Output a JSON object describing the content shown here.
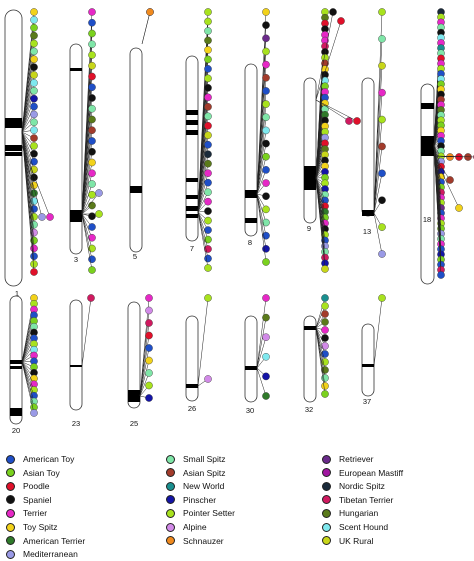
{
  "colors": {
    "American Toy": "#1f4fc7",
    "Asian Toy": "#7ad11e",
    "Poodle": "#e0102a",
    "Spaniel": "#111111",
    "Terrier": "#e628c6",
    "Toy Spitz": "#f2d21a",
    "American Terrier": "#2f7a2a",
    "Mediterranean": "#9a9ae6",
    "Small Spitz": "#7fe6a8",
    "Asian Spitz": "#a23b2b",
    "New World": "#1a8f8f",
    "Pinscher": "#1414a6",
    "Pointer Setter": "#a8e21e",
    "Alpine": "#d28ae8",
    "Schnauzer": "#f08a1e",
    "Retriever": "#6a2a8a",
    "European Mastiff": "#a016a0",
    "Nordic Spitz": "#1a2a3a",
    "Tibetan Terrier": "#d01a60",
    "Hungarian": "#5a7a1a",
    "Scent Hound": "#7fe8ee",
    "UK Rural": "#c8d61a"
  },
  "legend": [
    {
      "name": "American Toy"
    },
    {
      "name": "Asian Toy"
    },
    {
      "name": "Poodle"
    },
    {
      "name": "Spaniel"
    },
    {
      "name": "Terrier"
    },
    {
      "name": "Toy Spitz"
    },
    {
      "name": "American Terrier"
    },
    {
      "name": "Mediterranean"
    },
    {
      "name": "Small Spitz"
    },
    {
      "name": "Asian Spitz"
    },
    {
      "name": "New World"
    },
    {
      "name": "Pinscher"
    },
    {
      "name": "Pointer Setter"
    },
    {
      "name": "Alpine"
    },
    {
      "name": "Schnauzer"
    },
    {
      "name": "Retriever"
    },
    {
      "name": "European Mastiff"
    },
    {
      "name": "Nordic Spitz"
    },
    {
      "name": "Tibetan Terrier"
    },
    {
      "name": "Hungarian"
    },
    {
      "name": "Scent Hound"
    },
    {
      "name": "UK Rural"
    }
  ],
  "chromosomes": [
    {
      "label": "1",
      "loci": [
        [
          "Toy Spitz",
          "Scent Hound",
          "Asian Toy",
          "Hungarian",
          "Pointer Setter",
          "Small Spitz",
          "Toy Spitz",
          "Spaniel",
          "UK Rural",
          "Scent Hound",
          "Small Spitz",
          "Pinscher",
          "American Toy",
          "Mediterranean",
          "Small Spitz",
          "Scent Hound",
          "Asian Spitz",
          "Pointer Setter",
          "Spaniel",
          "American Toy",
          "UK Rural",
          "Spaniel",
          "Toy Spitz",
          "American Terrier",
          "Scent Hound",
          "American Toy",
          "Pointer Setter",
          "Small Spitz",
          "Alpine",
          "Asian Toy",
          "Terrier",
          "American Toy",
          "Pointer Setter",
          "Poodle"
        ],
        [
          "Mediterranean",
          "Terrier"
        ]
      ]
    },
    {
      "label": "3",
      "loci": [
        [
          "Terrier",
          "American Toy",
          "Asian Toy",
          "Small Spitz",
          "Pointer Setter",
          "UK Rural",
          "Poodle",
          "American Toy",
          "Spaniel",
          "Small Spitz",
          "Hungarian",
          "Asian Spitz",
          "American Toy",
          "Spaniel",
          "Toy Spitz",
          "Terrier",
          "Small Spitz",
          "Pointer Setter",
          "Hungarian",
          "Spaniel",
          "American Toy",
          "Terrier",
          "Pointer Setter",
          "American Toy",
          "Asian Toy"
        ],
        [
          "Mediterranean",
          "Pointer Setter"
        ]
      ]
    },
    {
      "label": "5",
      "loci": [
        [
          "Terrier",
          "Schnauzer"
        ]
      ]
    },
    {
      "label": "7",
      "loci": [
        [
          "Pointer Setter",
          "Pointer Setter",
          "Small Spitz",
          "Hungarian",
          "Toy Spitz",
          "Asian Toy",
          "American Toy",
          "Pointer Setter",
          "Spaniel",
          "Terrier",
          "Asian Spitz",
          "Small Spitz",
          "Poodle",
          "UK Rural",
          "American Toy",
          "Nordic Spitz",
          "Hungarian",
          "Terrier",
          "American Toy",
          "Small Spitz",
          "Terrier",
          "Spaniel",
          "Pointer Setter",
          "American Toy",
          "Asian Toy",
          "Tibetan Terrier",
          "American Toy",
          "Pointer Setter"
        ]
      ]
    },
    {
      "label": "8",
      "loci": [
        [
          "Toy Spitz",
          "Spaniel",
          "Retriever",
          "Pointer Setter",
          "Terrier",
          "Asian Spitz",
          "American Toy",
          "Pointer Setter",
          "Small Spitz",
          "Scent Hound",
          "Spaniel",
          "Asian Toy",
          "American Toy",
          "Terrier",
          "Spaniel",
          "Pointer Setter",
          "Small Spitz",
          "American Toy",
          "Pinscher",
          "Asian Toy"
        ]
      ]
    },
    {
      "label": "9",
      "loci": [
        [
          "Pointer Setter",
          "Hungarian",
          "Poodle",
          "Spaniel",
          "Terrier",
          "Terrier",
          "Tibetan Terrier",
          "Spaniel",
          "Pointer Setter",
          "Asian Spitz",
          "Toy Spitz",
          "Spaniel",
          "Scent Hound",
          "Asian Toy",
          "Terrier",
          "American Toy",
          "Toy Spitz",
          "Small Spitz",
          "American Terrier",
          "Spaniel",
          "Toy Spitz",
          "Pointer Setter",
          "Mediterranean",
          "Poodle",
          "Hungarian",
          "UK Rural",
          "Spaniel",
          "Toy Spitz",
          "Pinscher",
          "Asian Toy",
          "Pointer Setter",
          "Pinscher",
          "Small Spitz",
          "American Toy",
          "Poodle",
          "American Terrier",
          "Asian Toy",
          "Terrier",
          "Spaniel",
          "Pointer Setter",
          "American Toy",
          "Mediterranean",
          "Small Spitz",
          "Tibetan Terrier",
          "Pinscher",
          "UK Rural"
        ],
        [
          "Spaniel",
          "Poodle",
          "Tibetan Terrier",
          "Poodle"
        ]
      ]
    },
    {
      "label": "13",
      "loci": [
        [
          "Pointer Setter",
          "Small Spitz",
          "UK Rural",
          "Terrier",
          "Pointer Setter",
          "Asian Spitz",
          "American Toy",
          "Spaniel",
          "Pointer Setter",
          "Mediterranean"
        ]
      ]
    },
    {
      "label": "18",
      "loci": [
        [
          "Nordic Spitz",
          "Pointer Setter",
          "Terrier",
          "Small Spitz",
          "Spaniel",
          "Scent Hound",
          "Terrier",
          "New World",
          "Small Spitz",
          "Poodle",
          "Terrier",
          "Pointer Setter",
          "American Toy",
          "Scent Hound",
          "Asian Toy",
          "Toy Spitz",
          "Spaniel",
          "Asian Spitz",
          "Terrier",
          "Hungarian",
          "Small Spitz",
          "Pointer Setter",
          "Asian Toy",
          "Toy Spitz",
          "Terrier",
          "American Toy",
          "Spaniel",
          "Small Spitz",
          "Pointer Setter",
          "Mediterranean",
          "Poodle",
          "Pinscher",
          "Toy Spitz",
          "American Toy",
          "Asian Toy",
          "Tibetan Terrier",
          "Terrier",
          "Pointer Setter",
          "Retriever",
          "American Toy",
          "Terrier",
          "Pointer Setter",
          "Asian Toy",
          "Mediterranean",
          "Small Spitz",
          "Terrier",
          "American Toy",
          "Pinscher",
          "Asian Toy",
          "American Toy",
          "Tibetan Terrier",
          "American Toy"
        ],
        [
          "Schnauzer",
          "Poodle",
          "Asian Spitz",
          "Tibetan Terrier",
          "Asian Spitz",
          "Toy Spitz"
        ]
      ]
    },
    {
      "label": "20",
      "loci": [
        [
          "Toy Spitz",
          "Pointer Setter",
          "Terrier",
          "American Toy",
          "Asian Toy",
          "Small Spitz",
          "Spaniel",
          "American Toy",
          "Pointer Setter",
          "Scent Hound",
          "Terrier",
          "American Toy",
          "Asian Toy",
          "Spaniel",
          "Toy Spitz",
          "Terrier",
          "Pointer Setter",
          "American Toy",
          "Small Spitz",
          "Asian Toy",
          "Mediterranean"
        ]
      ]
    },
    {
      "label": "23",
      "loci": [
        [
          "Tibetan Terrier"
        ]
      ]
    },
    {
      "label": "25",
      "loci": [
        [
          "Terrier",
          "Alpine",
          "Tibetan Terrier",
          "Poodle",
          "American Toy",
          "Toy Spitz",
          "Small Spitz",
          "Pointer Setter",
          "Pinscher"
        ]
      ]
    },
    {
      "label": "26",
      "loci": [
        [
          "Pointer Setter",
          "Alpine"
        ]
      ]
    },
    {
      "label": "30",
      "loci": [
        [
          "Terrier",
          "Hungarian",
          "Alpine",
          "Scent Hound",
          "Pinscher",
          "American Terrier"
        ]
      ]
    },
    {
      "label": "32",
      "loci": [
        [
          "New World",
          "Pointer Setter",
          "Asian Spitz",
          "Hungarian",
          "Terrier",
          "Spaniel",
          "Alpine",
          "American Toy",
          "Pointer Setter",
          "Hungarian",
          "Small Spitz",
          "Toy Spitz",
          "Asian Toy"
        ]
      ]
    },
    {
      "label": "37",
      "loci": [
        [
          "Pointer Setter"
        ]
      ]
    }
  ]
}
